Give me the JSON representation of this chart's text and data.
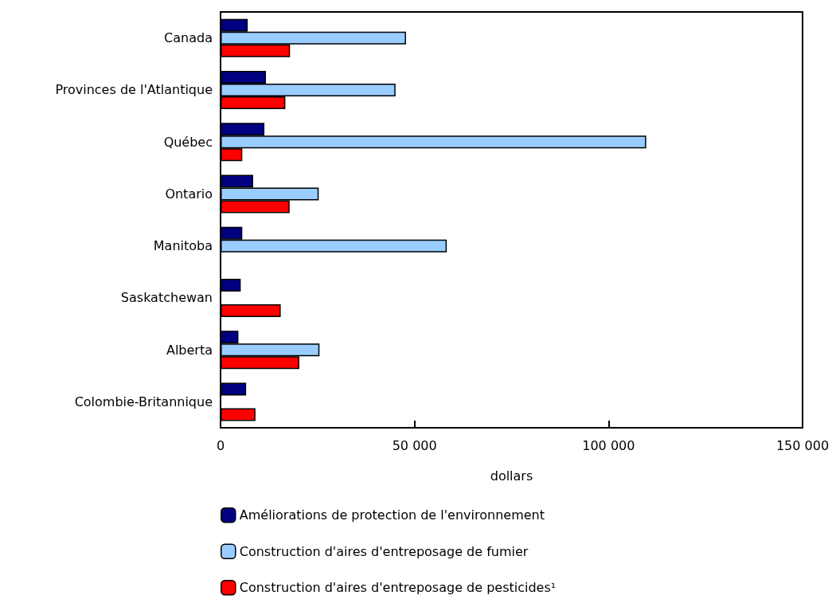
{
  "chart_data": {
    "type": "bar",
    "orientation": "horizontal",
    "xlabel": "dollars",
    "categories": [
      "Canada",
      "Provinces de l'Atlantique",
      "Québec",
      "Ontario",
      "Manitoba",
      "Saskatchewan",
      "Alberta",
      "Colombie-Britannique"
    ],
    "series": [
      {
        "name": "Améliorations de protection de l'environnement",
        "color": "#000080",
        "values": [
          7000,
          11700,
          11300,
          8400,
          5600,
          5200,
          4600,
          6600
        ]
      },
      {
        "name": "Construction d'aires d'entreposage de fumier",
        "color": "#99ccff",
        "values": [
          47800,
          45100,
          109700,
          25300,
          58300,
          null,
          25500,
          null
        ]
      },
      {
        "name": "Construction d'aires d'entreposage de pesticides¹",
        "color": "#ff0000",
        "values": [
          17900,
          16700,
          5600,
          17800,
          null,
          15500,
          20300,
          9000
        ]
      }
    ],
    "xlim": [
      0,
      150000
    ],
    "xticks": [
      0,
      {
        "value": 50000,
        "label": "50 000"
      },
      {
        "value": 100000,
        "label": "100 000"
      },
      {
        "value": 150000,
        "label": "150 000"
      }
    ],
    "grid": false,
    "legend": "bottom"
  }
}
